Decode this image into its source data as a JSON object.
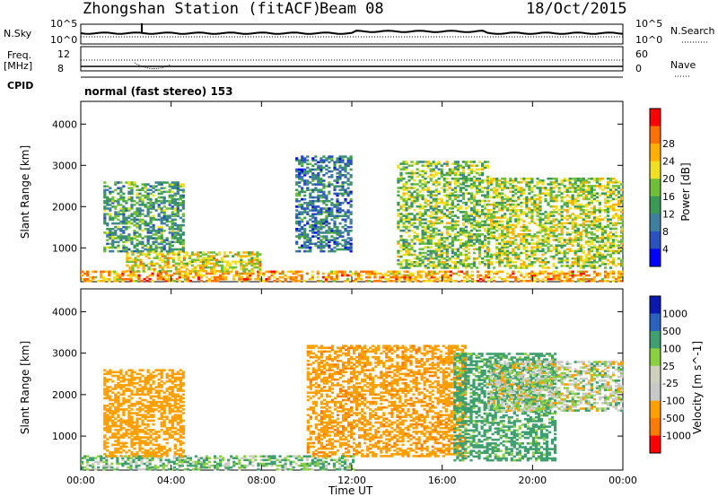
{
  "header": {
    "station": "Zhongshan Station (fitACF)",
    "beam": "Beam 08",
    "date": "18/Oct/2015"
  },
  "top_panel": {
    "left_labels": [
      "N.Sky",
      "Freq.",
      "[MHz]",
      "CPID"
    ],
    "right_labels": [
      "N.Search",
      "Nave"
    ],
    "nsky_ticks": [
      "10^5",
      "10^0"
    ],
    "nsearch_ticks": [
      "10^5",
      "10^0"
    ],
    "freq_ticks": [
      "12",
      "8"
    ],
    "nave_ticks": [
      "60",
      "0"
    ],
    "cpid_text": "normal (fast stereo) 153"
  },
  "colors": {
    "power": [
      "#0000ff",
      "#2a52be",
      "#3f7f9f",
      "#3a9a55",
      "#6fbf3a",
      "#f0e020",
      "#ffb000",
      "#ff7000",
      "#ff0000"
    ],
    "velocity": [
      "#ff0000",
      "#ff7a00",
      "#ffa000",
      "#c8c8c8",
      "#cfcfbd",
      "#8ad040",
      "#3f9f6f",
      "#2a62be",
      "#0a1ab0"
    ]
  },
  "chart_data": [
    {
      "type": "heatmap",
      "title": "Power [dB]",
      "ylabel": "Slant Range [km]",
      "xlabel": "",
      "x_ticks": [
        "00:00",
        "04:00",
        "08:00",
        "12:00",
        "16:00",
        "20:00",
        "00:00"
      ],
      "y_ticks": [
        1000,
        2000,
        3000,
        4000
      ],
      "ylim": [
        180,
        4550
      ],
      "colorbar": {
        "label": "Power [dB]",
        "ticks": [
          4,
          8,
          12,
          16,
          20,
          24,
          28
        ]
      },
      "regions": [
        {
          "t": [
            0,
            24
          ],
          "r": [
            180,
            420
          ],
          "value": 26
        },
        {
          "t": [
            2,
            8
          ],
          "r": [
            420,
            900
          ],
          "value": 22
        },
        {
          "t": [
            1,
            4.5
          ],
          "r": [
            900,
            2600
          ],
          "value": 14
        },
        {
          "t": [
            9.5,
            12
          ],
          "r": [
            900,
            3200
          ],
          "value": 10
        },
        {
          "t": [
            14,
            18
          ],
          "r": [
            500,
            3100
          ],
          "value": 18
        },
        {
          "t": [
            18,
            24
          ],
          "r": [
            500,
            2700
          ],
          "value": 20
        }
      ]
    },
    {
      "type": "heatmap",
      "title": "Velocity [m s^-1]",
      "ylabel": "Slant Range [km]",
      "xlabel": "Time UT",
      "x_ticks": [
        "00:00",
        "04:00",
        "08:00",
        "12:00",
        "16:00",
        "20:00",
        "00:00"
      ],
      "y_ticks": [
        1000,
        2000,
        3000,
        4000
      ],
      "ylim": [
        180,
        4550
      ],
      "colorbar": {
        "label": "Velocity [m s^-1]",
        "ticks": [
          1000,
          500,
          100,
          25,
          -25,
          -100,
          -500,
          -1000
        ]
      },
      "regions": [
        {
          "t": [
            0,
            12
          ],
          "r": [
            180,
            500
          ],
          "value": 100
        },
        {
          "t": [
            1,
            4.5
          ],
          "r": [
            500,
            2600
          ],
          "value": -300
        },
        {
          "t": [
            10,
            17
          ],
          "r": [
            500,
            3200
          ],
          "value": -400
        },
        {
          "t": [
            16.5,
            21
          ],
          "r": [
            400,
            3000
          ],
          "value": 200
        },
        {
          "t": [
            18,
            24
          ],
          "r": [
            1600,
            2800
          ],
          "value": 0
        }
      ]
    }
  ]
}
